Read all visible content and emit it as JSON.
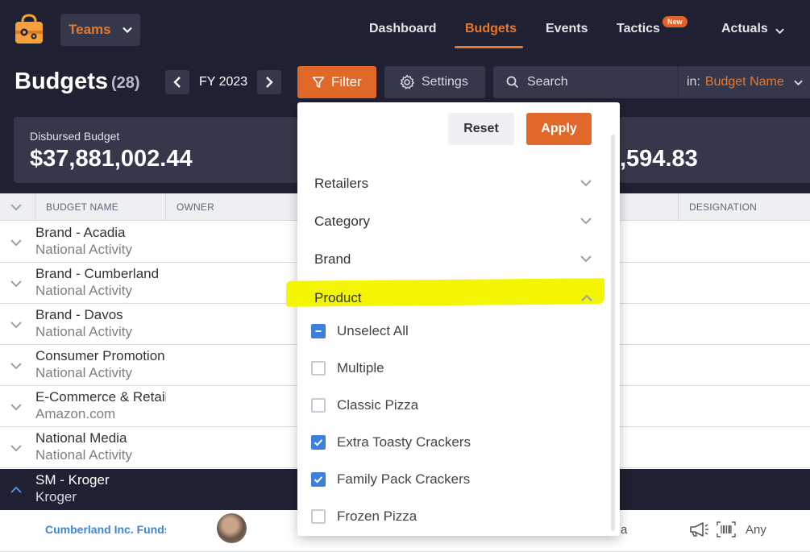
{
  "nav": {
    "teams_label": "Teams",
    "items": [
      {
        "label": "Dashboard"
      },
      {
        "label": "Budgets"
      },
      {
        "label": "Events"
      },
      {
        "label": "Tactics"
      },
      {
        "label": "Actuals"
      }
    ],
    "active": "Budgets",
    "new_badge": "New"
  },
  "header": {
    "title": "Budgets",
    "count": "(28)",
    "fiscal_year": "FY 2023",
    "filter_label": "Filter",
    "settings_label": "Settings",
    "search_placeholder": "Search",
    "search_in_prefix": "in:",
    "search_in_value": "Budget Name"
  },
  "stats": {
    "disbursed_label": "Disbursed Budget",
    "disbursed_value": "$37,881,002.44",
    "right_value_partial": ",594.83"
  },
  "table": {
    "columns": [
      "BUDGET NAME",
      "OWNER",
      "DESIGNATION"
    ],
    "rows": [
      {
        "name": "Brand - Acadia",
        "sub": "National Activity",
        "expanded": false
      },
      {
        "name": "Brand - Cumberland",
        "sub": "National Activity",
        "expanded": false
      },
      {
        "name": "Brand - Davos",
        "sub": "National Activity",
        "expanded": false
      },
      {
        "name": "Consumer Promotion",
        "sub": "National Activity",
        "expanded": false
      },
      {
        "name": "E-Commerce & Retail",
        "sub": "Amazon.com",
        "expanded": false
      },
      {
        "name": "National Media",
        "sub": "National Activity",
        "expanded": false
      },
      {
        "name": "SM - Kroger",
        "sub": "Kroger",
        "expanded": true
      }
    ],
    "detail": {
      "funds_link": "Cumberland Inc. Funds",
      "partial_text": "a",
      "any_label": "Any"
    }
  },
  "filter_panel": {
    "reset_label": "Reset",
    "apply_label": "Apply",
    "sections": [
      {
        "label": "Retailers",
        "expanded": false
      },
      {
        "label": "Category",
        "expanded": false
      },
      {
        "label": "Brand",
        "expanded": false
      },
      {
        "label": "Product",
        "expanded": true
      }
    ],
    "highlight_color": "#f4f500",
    "product_options": [
      {
        "label": "Unselect All",
        "state": "indeterminate"
      },
      {
        "label": "Multiple",
        "state": "unchecked"
      },
      {
        "label": "Classic Pizza",
        "state": "unchecked"
      },
      {
        "label": "Extra Toasty Crackers",
        "state": "checked"
      },
      {
        "label": "Family Pack Crackers",
        "state": "checked"
      },
      {
        "label": "Frozen Pizza",
        "state": "unchecked"
      }
    ]
  },
  "colors": {
    "accent": "#e8782e",
    "dark_bg": "#1f2133",
    "panel_bg": "#35384a",
    "checkbox_blue": "#3d7fdc",
    "link_blue": "#3a87d8"
  }
}
